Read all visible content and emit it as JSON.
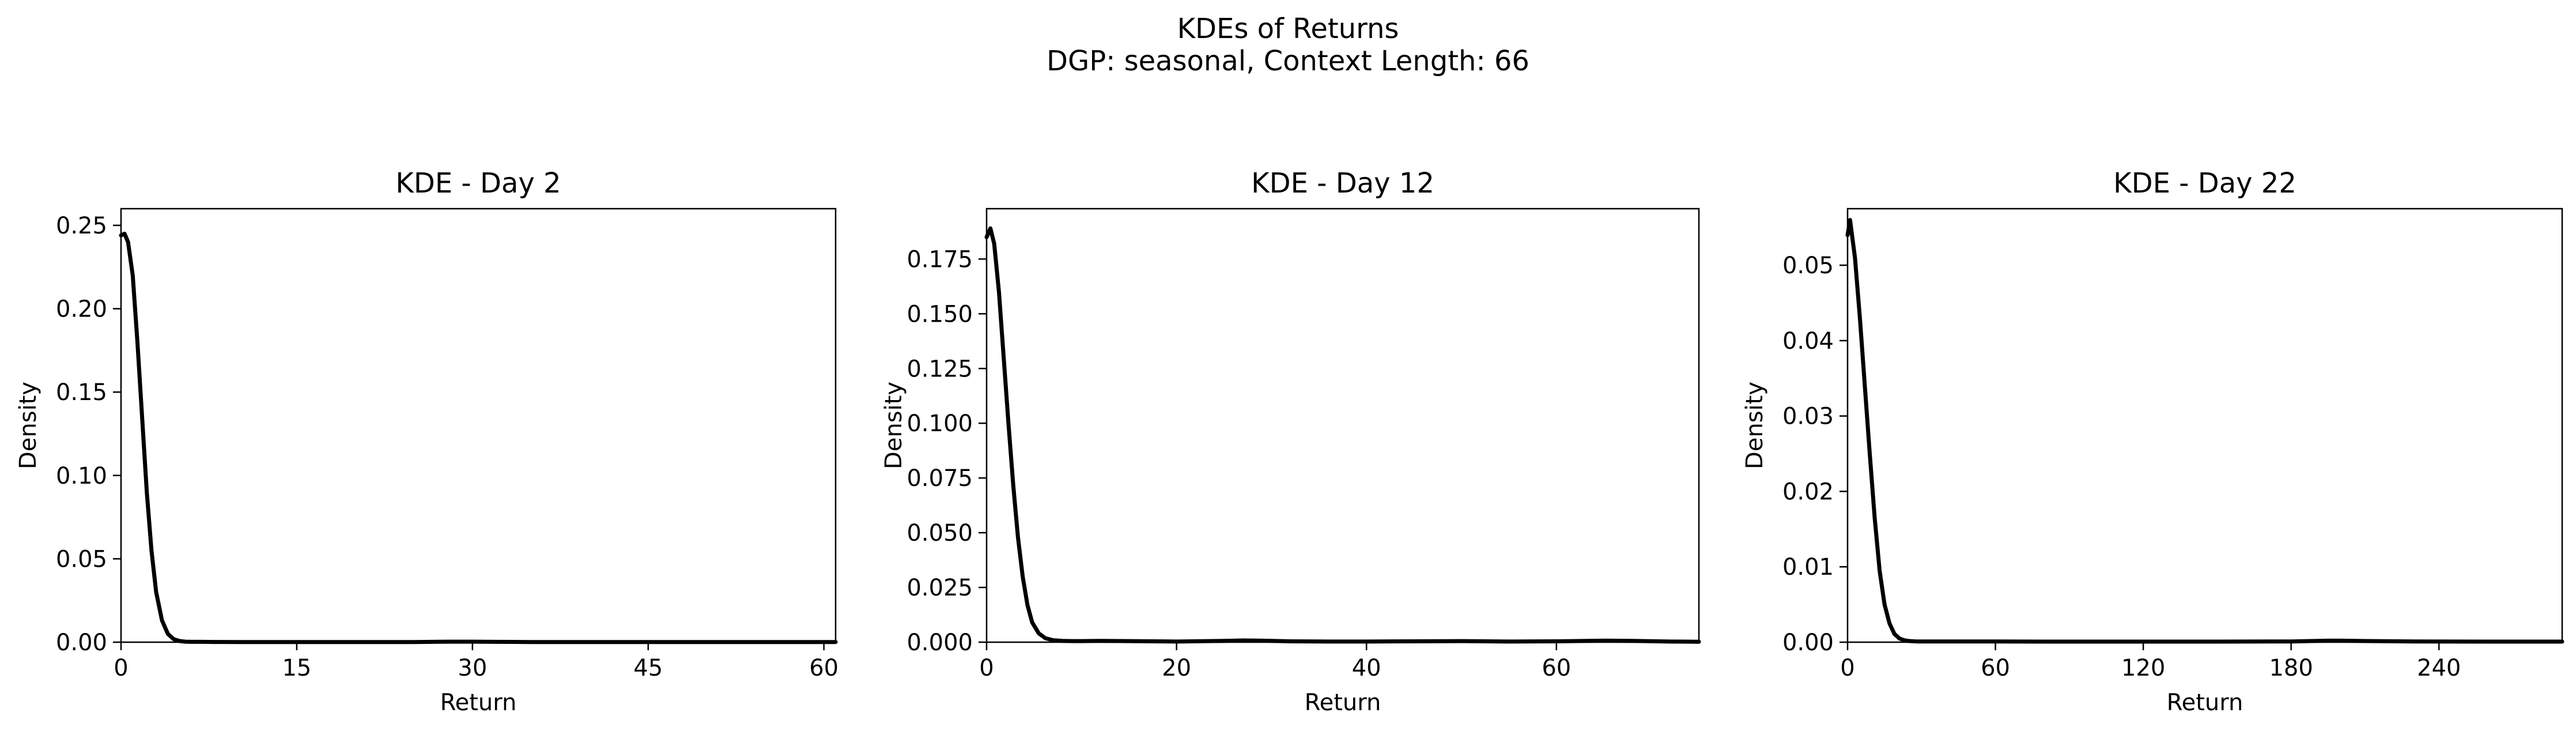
{
  "figure": {
    "title_line1": "KDEs of Returns",
    "title_line2": "DGP: seasonal, Context Length: 66"
  },
  "chart_data": [
    {
      "type": "line",
      "title": "KDE - Day 2",
      "xlabel": "Return",
      "ylabel": "Density",
      "xlim": [
        0,
        61
      ],
      "ylim": [
        0,
        0.26
      ],
      "xticks": [
        0,
        15,
        30,
        45,
        60
      ],
      "xtick_labels": [
        "0",
        "15",
        "30",
        "45",
        "60"
      ],
      "yticks": [
        0,
        0.05,
        0.1,
        0.15,
        0.2,
        0.25
      ],
      "ytick_labels": [
        "0.00",
        "0.05",
        "0.10",
        "0.15",
        "0.20",
        "0.25"
      ],
      "grid": false,
      "color": "#000000",
      "series": [
        {
          "x": [
            0,
            0.3,
            0.6,
            1.0,
            1.4,
            1.8,
            2.2,
            2.6,
            3.0,
            3.5,
            4.0,
            4.5,
            5.0,
            5.5,
            6.0,
            7.0,
            8.0,
            10.0,
            15.0,
            20.0,
            25.0,
            28.0,
            30.0,
            32.0,
            35.0,
            40.0,
            45.0,
            50.0,
            55.0,
            61.0
          ],
          "y": [
            0.244,
            0.245,
            0.24,
            0.22,
            0.18,
            0.135,
            0.09,
            0.055,
            0.03,
            0.013,
            0.005,
            0.0018,
            0.0007,
            0.0003,
            0.0002,
            0.0002,
            0.00015,
            0.0001,
            0.0001,
            0.0001,
            0.0001,
            0.0003,
            0.0003,
            0.0002,
            0.0001,
            0.0001,
            0.0001,
            0.0001,
            0.0001,
            0.0001
          ]
        }
      ]
    },
    {
      "type": "line",
      "title": "KDE - Day 12",
      "xlabel": "Return",
      "ylabel": "Density",
      "xlim": [
        0,
        75
      ],
      "ylim": [
        0,
        0.198
      ],
      "xticks": [
        0,
        20,
        40,
        60
      ],
      "xtick_labels": [
        "0",
        "20",
        "40",
        "60"
      ],
      "yticks": [
        0,
        0.025,
        0.05,
        0.075,
        0.1,
        0.125,
        0.15,
        0.175
      ],
      "ytick_labels": [
        "0.000",
        "0.025",
        "0.050",
        "0.075",
        "0.100",
        "0.125",
        "0.150",
        "0.175"
      ],
      "grid": false,
      "color": "#000000",
      "series": [
        {
          "x": [
            0,
            0.4,
            0.8,
            1.3,
            1.8,
            2.3,
            2.8,
            3.3,
            3.8,
            4.3,
            4.8,
            5.5,
            6.2,
            7.0,
            8.0,
            9.0,
            10.0,
            12.0,
            15.0,
            20.0,
            25.0,
            27.0,
            29.0,
            32.0,
            36.0,
            40.0,
            45.0,
            50.0,
            55.0,
            60.0,
            65.0,
            68.0,
            72.0,
            75.0
          ],
          "y": [
            0.185,
            0.189,
            0.182,
            0.16,
            0.13,
            0.1,
            0.072,
            0.048,
            0.03,
            0.017,
            0.009,
            0.004,
            0.0018,
            0.0009,
            0.0006,
            0.0005,
            0.0005,
            0.0006,
            0.0005,
            0.0003,
            0.0006,
            0.0008,
            0.0007,
            0.0004,
            0.0003,
            0.0003,
            0.0004,
            0.0005,
            0.0003,
            0.0004,
            0.0007,
            0.0006,
            0.0003,
            0.0002
          ]
        }
      ]
    },
    {
      "type": "line",
      "title": "KDE - Day 22",
      "xlabel": "Return",
      "ylabel": "Density",
      "xlim": [
        0,
        290
      ],
      "ylim": [
        0,
        0.0575
      ],
      "xticks": [
        0,
        60,
        120,
        180,
        240
      ],
      "xtick_labels": [
        "0",
        "60",
        "120",
        "180",
        "240"
      ],
      "yticks": [
        0,
        0.01,
        0.02,
        0.03,
        0.04,
        0.05
      ],
      "ytick_labels": [
        "0.00",
        "0.01",
        "0.02",
        "0.03",
        "0.04",
        "0.05"
      ],
      "grid": false,
      "color": "#000000",
      "series": [
        {
          "x": [
            0,
            1,
            3,
            5,
            7,
            9,
            11,
            13,
            15,
            17,
            19,
            21,
            23,
            25,
            28,
            32,
            40,
            50,
            60,
            80,
            100,
            120,
            150,
            180,
            195,
            200,
            210,
            230,
            260,
            290
          ],
          "y": [
            0.054,
            0.056,
            0.051,
            0.043,
            0.034,
            0.025,
            0.0165,
            0.0095,
            0.005,
            0.0025,
            0.0011,
            0.0005,
            0.00025,
            0.00015,
            0.0001,
            0.0001,
            0.0001,
            0.0001,
            0.0001,
            8e-05,
            8e-05,
            8e-05,
            8e-05,
            0.0001,
            0.0002,
            0.0002,
            0.00015,
            0.0001,
            8e-05,
            8e-05
          ]
        }
      ]
    }
  ]
}
